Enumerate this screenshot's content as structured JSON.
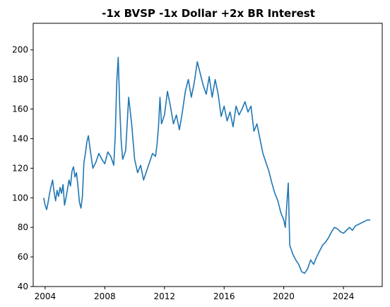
{
  "chart_data": {
    "type": "line",
    "title": "-1x BVSP -1x Dollar +2x BR Interest",
    "xlabel": "",
    "ylabel": "",
    "xlim": [
      2003.2,
      2026.6
    ],
    "ylim": [
      40,
      218
    ],
    "grid": false,
    "legend": "none",
    "x_ticks": [
      2004,
      2008,
      2012,
      2016,
      2020,
      2024
    ],
    "y_ticks": [
      40,
      60,
      80,
      100,
      120,
      140,
      160,
      180,
      200
    ],
    "line_color": "#1f77b4",
    "series": [
      {
        "x": [
          2003.9,
          2004.0,
          2004.1,
          2004.2,
          2004.3,
          2004.4,
          2004.5,
          2004.6,
          2004.7,
          2004.8,
          2004.9,
          2005.0,
          2005.1,
          2005.2,
          2005.3,
          2005.4,
          2005.5,
          2005.6,
          2005.7,
          2005.8,
          2005.9,
          2006.0,
          2006.1,
          2006.2,
          2006.3,
          2006.4,
          2006.5,
          2006.6,
          2006.7,
          2006.8,
          2006.9,
          2007.0,
          2007.2,
          2007.4,
          2007.6,
          2007.8,
          2008.0,
          2008.2,
          2008.4,
          2008.6,
          2008.7,
          2008.8,
          2008.9,
          2009.0,
          2009.1,
          2009.2,
          2009.4,
          2009.6,
          2009.8,
          2010.0,
          2010.2,
          2010.4,
          2010.6,
          2010.8,
          2011.0,
          2011.2,
          2011.4,
          2011.5,
          2011.6,
          2011.7,
          2011.8,
          2012.0,
          2012.2,
          2012.4,
          2012.6,
          2012.8,
          2013.0,
          2013.2,
          2013.4,
          2013.6,
          2013.8,
          2014.0,
          2014.2,
          2014.4,
          2014.6,
          2014.8,
          2015.0,
          2015.2,
          2015.4,
          2015.6,
          2015.8,
          2016.0,
          2016.2,
          2016.4,
          2016.6,
          2016.8,
          2017.0,
          2017.2,
          2017.4,
          2017.6,
          2017.8,
          2018.0,
          2018.2,
          2018.4,
          2018.6,
          2018.8,
          2019.0,
          2019.2,
          2019.4,
          2019.6,
          2019.8,
          2020.0,
          2020.1,
          2020.2,
          2020.3,
          2020.4,
          2020.6,
          2020.8,
          2021.0,
          2021.2,
          2021.4,
          2021.6,
          2021.8,
          2022.0,
          2022.2,
          2022.4,
          2022.6,
          2022.8,
          2023.0,
          2023.2,
          2023.4,
          2023.6,
          2023.8,
          2024.0,
          2024.2,
          2024.4,
          2024.6,
          2024.8,
          2025.0,
          2025.2,
          2025.4,
          2025.6,
          2025.8
        ],
        "values": [
          100,
          95,
          92,
          97,
          103,
          108,
          112,
          104,
          98,
          105,
          101,
          107,
          103,
          109,
          95,
          100,
          106,
          112,
          108,
          118,
          121,
          114,
          117,
          108,
          97,
          93,
          101,
          124,
          130,
          138,
          142,
          134,
          120,
          124,
          130,
          126,
          123,
          131,
          128,
          122,
          142,
          178,
          195,
          162,
          138,
          126,
          132,
          168,
          150,
          126,
          117,
          122,
          112,
          118,
          124,
          130,
          128,
          136,
          148,
          168,
          150,
          156,
          172,
          162,
          150,
          156,
          146,
          158,
          172,
          180,
          168,
          178,
          192,
          184,
          176,
          170,
          182,
          168,
          180,
          170,
          155,
          162,
          152,
          158,
          148,
          162,
          156,
          160,
          165,
          158,
          162,
          145,
          150,
          140,
          130,
          124,
          118,
          110,
          103,
          98,
          90,
          85,
          80,
          95,
          110,
          68,
          62,
          58,
          55,
          50,
          49,
          52,
          58,
          55,
          60,
          64,
          68,
          70,
          73,
          77,
          80,
          79,
          77,
          76,
          78,
          80,
          78,
          81,
          82,
          83,
          84,
          85,
          85
        ]
      }
    ]
  }
}
